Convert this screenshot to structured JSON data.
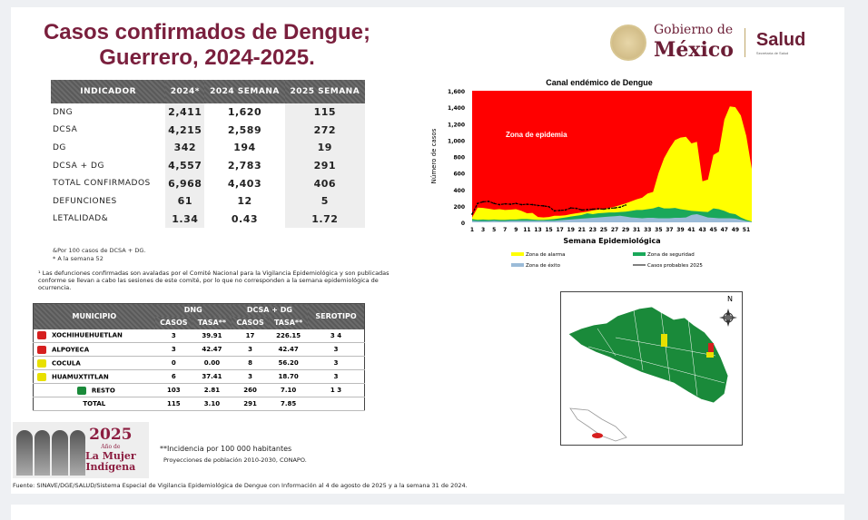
{
  "title": {
    "line1": "Casos confirmados de Dengue;",
    "line2": "Guerrero, 2024-2025."
  },
  "logo": {
    "gobierno": "Gobierno de",
    "mexico": "México",
    "salud": "Salud",
    "secretaria": "Secretaría de Salud"
  },
  "indicadores": {
    "headers": [
      "INDICADOR",
      "2024*",
      "2024 SEMANA",
      "2025 SEMANA"
    ],
    "rows": [
      {
        "label": "DNG",
        "v": [
          "2,411",
          "1,620",
          "115"
        ]
      },
      {
        "label": "DCSA",
        "v": [
          "4,215",
          "2,589",
          "272"
        ]
      },
      {
        "label": "DG",
        "v": [
          "342",
          "194",
          "19"
        ]
      },
      {
        "label": "DCSA + DG",
        "v": [
          "4,557",
          "2,783",
          "291"
        ]
      },
      {
        "label": "TOTAL CONFIRMADOS",
        "v": [
          "6,968",
          "4,403",
          "406"
        ]
      },
      {
        "label": "DEFUNCIONES",
        "v": [
          "61",
          "12",
          "5"
        ]
      },
      {
        "label": "LETALIDAD&",
        "v": [
          "1.34",
          "0.43",
          "1.72"
        ]
      }
    ],
    "note1": "&Por 100 casos de DCSA + DG.",
    "note2": "* A la semana 52"
  },
  "footnote": "¹ Las defunciones confirmadas son avaladas por el Comité Nacional para la Vigilancia Epidemiológica y son publicadas conforme se llevan a cabo las sesiones de este comité, por lo que no corresponden a la semana epidemiológica de ocurrencia.",
  "municipios": {
    "headers": {
      "municipio": "MUNICIPIO",
      "dng": "DNG",
      "dcsa": "DCSA + DG",
      "casos": "CASOS",
      "tasa": "TASA**",
      "serotipo": "SEROTIPO"
    },
    "rows": [
      {
        "name": "XOCHIHUEHUETLAN",
        "color": "#d61f1f",
        "c1": "3",
        "t1": "39.91",
        "c2": "17",
        "t2": "226.15",
        "s": "3   4"
      },
      {
        "name": "ALPOYECA",
        "color": "#d61f1f",
        "c1": "3",
        "t1": "42.47",
        "c2": "3",
        "t2": "42.47",
        "s": "3"
      },
      {
        "name": "COCULA",
        "color": "#e8e000",
        "c1": "0",
        "t1": "0.00",
        "c2": "8",
        "t2": "56.20",
        "s": "3"
      },
      {
        "name": "HUAMUXTITLAN",
        "color": "#e8e000",
        "c1": "6",
        "t1": "37.41",
        "c2": "3",
        "t2": "18.70",
        "s": "3"
      },
      {
        "name": "RESTO",
        "color": "#1a8a3a",
        "c1": "103",
        "t1": "2.81",
        "c2": "260",
        "t2": "7.10",
        "s": "1   3"
      },
      {
        "name": "TOTAL",
        "color": "",
        "c1": "115",
        "t1": "3.10",
        "c2": "291",
        "t2": "7.85",
        "s": ""
      }
    ]
  },
  "banner": {
    "year": "2025",
    "sub": "Año de",
    "line1": "La Mujer",
    "line2": "Indígena"
  },
  "incidencia": "**Incidencia por 100 000 habitantes",
  "proyecciones": "Proyecciones de población 2010-2030,  CONAPO.",
  "fuente": "Fuente: SINAVE/DGE/SALUD/Sistema Especial de Vigilancia Epidemiológica de Dengue con Información al 4 de agosto de 2025 y a la semana 31 de 2024.",
  "map": {
    "north": "N",
    "colors": {
      "resto": "#1a8a3a",
      "alarma": "#e8e000",
      "epidemia": "#d61f1f"
    }
  },
  "chart_data": {
    "type": "area",
    "title": "Canal endémico de Dengue",
    "xlabel": "Semana Epidemiológica",
    "ylabel": "Número de casos",
    "ylim": [
      0,
      1600
    ],
    "yticks": [
      "0",
      "200",
      "400",
      "600",
      "800",
      "1,000",
      "1,200",
      "1,400",
      "1,600"
    ],
    "xticks": [
      1,
      3,
      5,
      7,
      9,
      11,
      13,
      15,
      17,
      19,
      21,
      23,
      25,
      27,
      29,
      31,
      33,
      35,
      37,
      39,
      41,
      43,
      45,
      47,
      49,
      51
    ],
    "annotation": "Zona de epidemia",
    "colors": {
      "epidemia": "#ff0000",
      "alarma": "#ffff00",
      "seguridad": "#1aa85a",
      "exito": "#9bbbd8",
      "casos": "#000000"
    },
    "legend": [
      "Zona de alarma",
      "Zona de seguridad",
      "Zona de éxito",
      "Casos probables 2025"
    ],
    "weeks": [
      1,
      2,
      3,
      4,
      5,
      6,
      7,
      8,
      9,
      10,
      11,
      12,
      13,
      14,
      15,
      16,
      17,
      18,
      19,
      20,
      21,
      22,
      23,
      24,
      25,
      26,
      27,
      28,
      29,
      30,
      31,
      32,
      33,
      34,
      35,
      36,
      37,
      38,
      39,
      40,
      41,
      42,
      43,
      44,
      45,
      46,
      47,
      48,
      49,
      50,
      51,
      52
    ],
    "alarma": [
      60,
      180,
      175,
      165,
      155,
      160,
      150,
      155,
      160,
      140,
      110,
      115,
      65,
      60,
      65,
      80,
      80,
      85,
      100,
      110,
      120,
      130,
      145,
      155,
      165,
      175,
      190,
      210,
      230,
      255,
      280,
      300,
      350,
      370,
      600,
      780,
      900,
      1000,
      1030,
      1040,
      960,
      980,
      500,
      520,
      820,
      860,
      1250,
      1410,
      1400,
      1300,
      1050,
      650
    ],
    "seguridad": [
      40,
      30,
      35,
      30,
      35,
      30,
      30,
      35,
      35,
      40,
      40,
      35,
      30,
      30,
      35,
      40,
      50,
      60,
      70,
      80,
      90,
      110,
      100,
      110,
      115,
      120,
      120,
      125,
      130,
      140,
      150,
      150,
      160,
      170,
      190,
      170,
      170,
      175,
      160,
      150,
      140,
      135,
      130,
      125,
      170,
      160,
      140,
      110,
      100,
      60,
      30,
      10
    ],
    "exito": [
      20,
      15,
      15,
      15,
      20,
      15,
      15,
      20,
      20,
      20,
      20,
      20,
      20,
      20,
      20,
      20,
      25,
      30,
      35,
      40,
      45,
      50,
      55,
      60,
      65,
      70,
      75,
      80,
      70,
      60,
      55,
      50,
      55,
      55,
      50,
      50,
      50,
      55,
      55,
      60,
      90,
      100,
      80,
      60,
      55,
      50,
      50,
      50,
      45,
      30,
      15,
      5
    ],
    "casos_probables_2025": [
      100,
      230,
      250,
      255,
      230,
      215,
      225,
      220,
      230,
      215,
      220,
      215,
      205,
      200,
      190,
      140,
      145,
      150,
      175,
      170,
      150,
      155,
      160,
      165,
      160,
      170,
      175,
      185,
      210
    ]
  }
}
